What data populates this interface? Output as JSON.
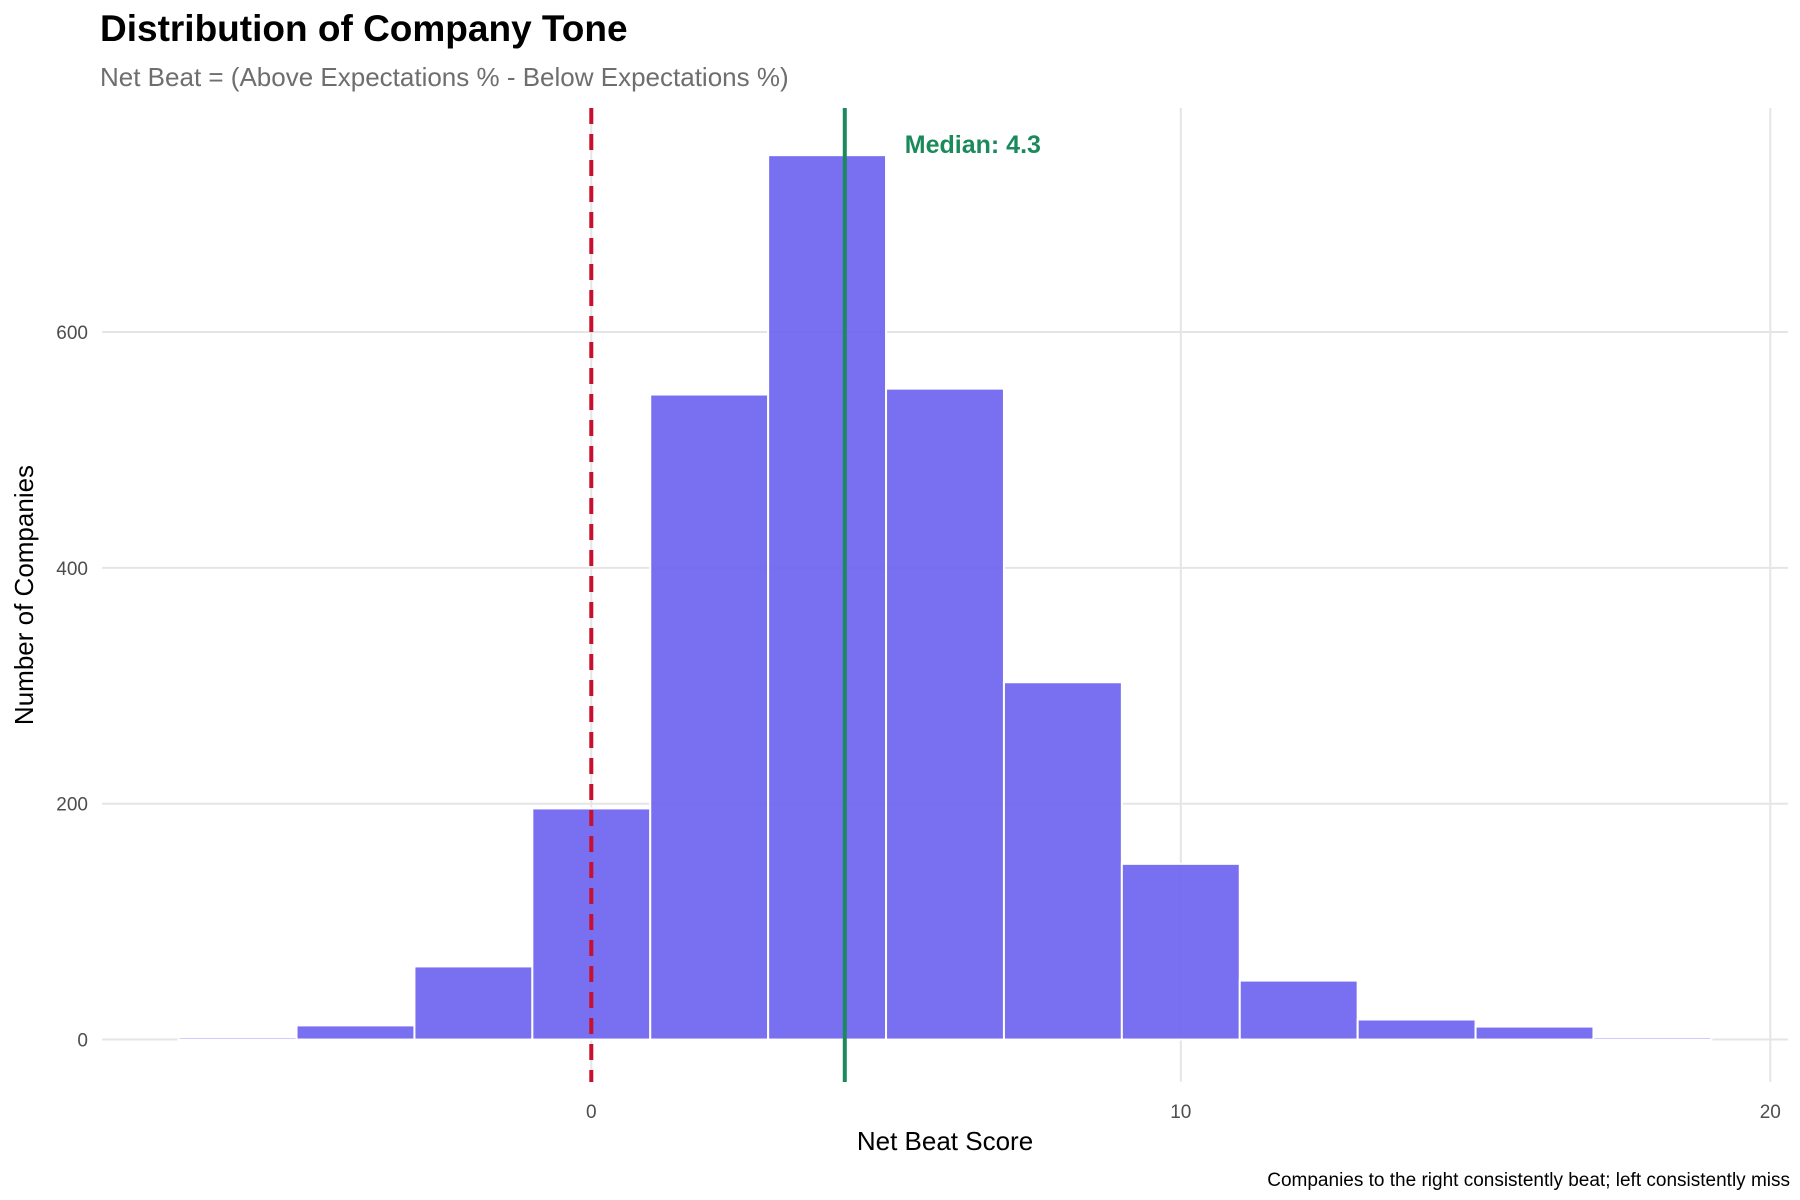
{
  "chart_data": {
    "type": "bar",
    "title": "Distribution of Company Tone",
    "subtitle": "Net Beat = (Above Expectations % - Below Expectations %)",
    "xlabel": "Net Beat Score",
    "ylabel": "Number of Companies",
    "caption": "Companies to the right consistently beat; left consistently miss",
    "bin_width": 2,
    "bins": [
      {
        "x_min": -7,
        "x_max": -5,
        "count": 2
      },
      {
        "x_min": -5,
        "x_max": -3,
        "count": 12
      },
      {
        "x_min": -3,
        "x_max": -1,
        "count": 62
      },
      {
        "x_min": -1,
        "x_max": 1,
        "count": 196
      },
      {
        "x_min": 1,
        "x_max": 3,
        "count": 547
      },
      {
        "x_min": 3,
        "x_max": 5,
        "count": 750
      },
      {
        "x_min": 5,
        "x_max": 7,
        "count": 552
      },
      {
        "x_min": 7,
        "x_max": 9,
        "count": 303
      },
      {
        "x_min": 9,
        "x_max": 11,
        "count": 149
      },
      {
        "x_min": 11,
        "x_max": 13,
        "count": 50
      },
      {
        "x_min": 13,
        "x_max": 15,
        "count": 17
      },
      {
        "x_min": 15,
        "x_max": 17,
        "count": 11
      },
      {
        "x_min": 17,
        "x_max": 19,
        "count": 2
      }
    ],
    "xlim": [
      -8.3,
      20.3
    ],
    "ylim": [
      -36,
      790
    ],
    "x_ticks": [
      0,
      10,
      20
    ],
    "y_ticks": [
      0,
      200,
      400,
      600
    ],
    "grid": true,
    "bar_color": "#6A5FEF",
    "reference_lines": [
      {
        "x": 0,
        "style": "dashed",
        "color": "#C8102E"
      },
      {
        "x": 4.3,
        "style": "solid",
        "color": "#1A8A5C",
        "label": "Median: 4.3"
      }
    ]
  }
}
